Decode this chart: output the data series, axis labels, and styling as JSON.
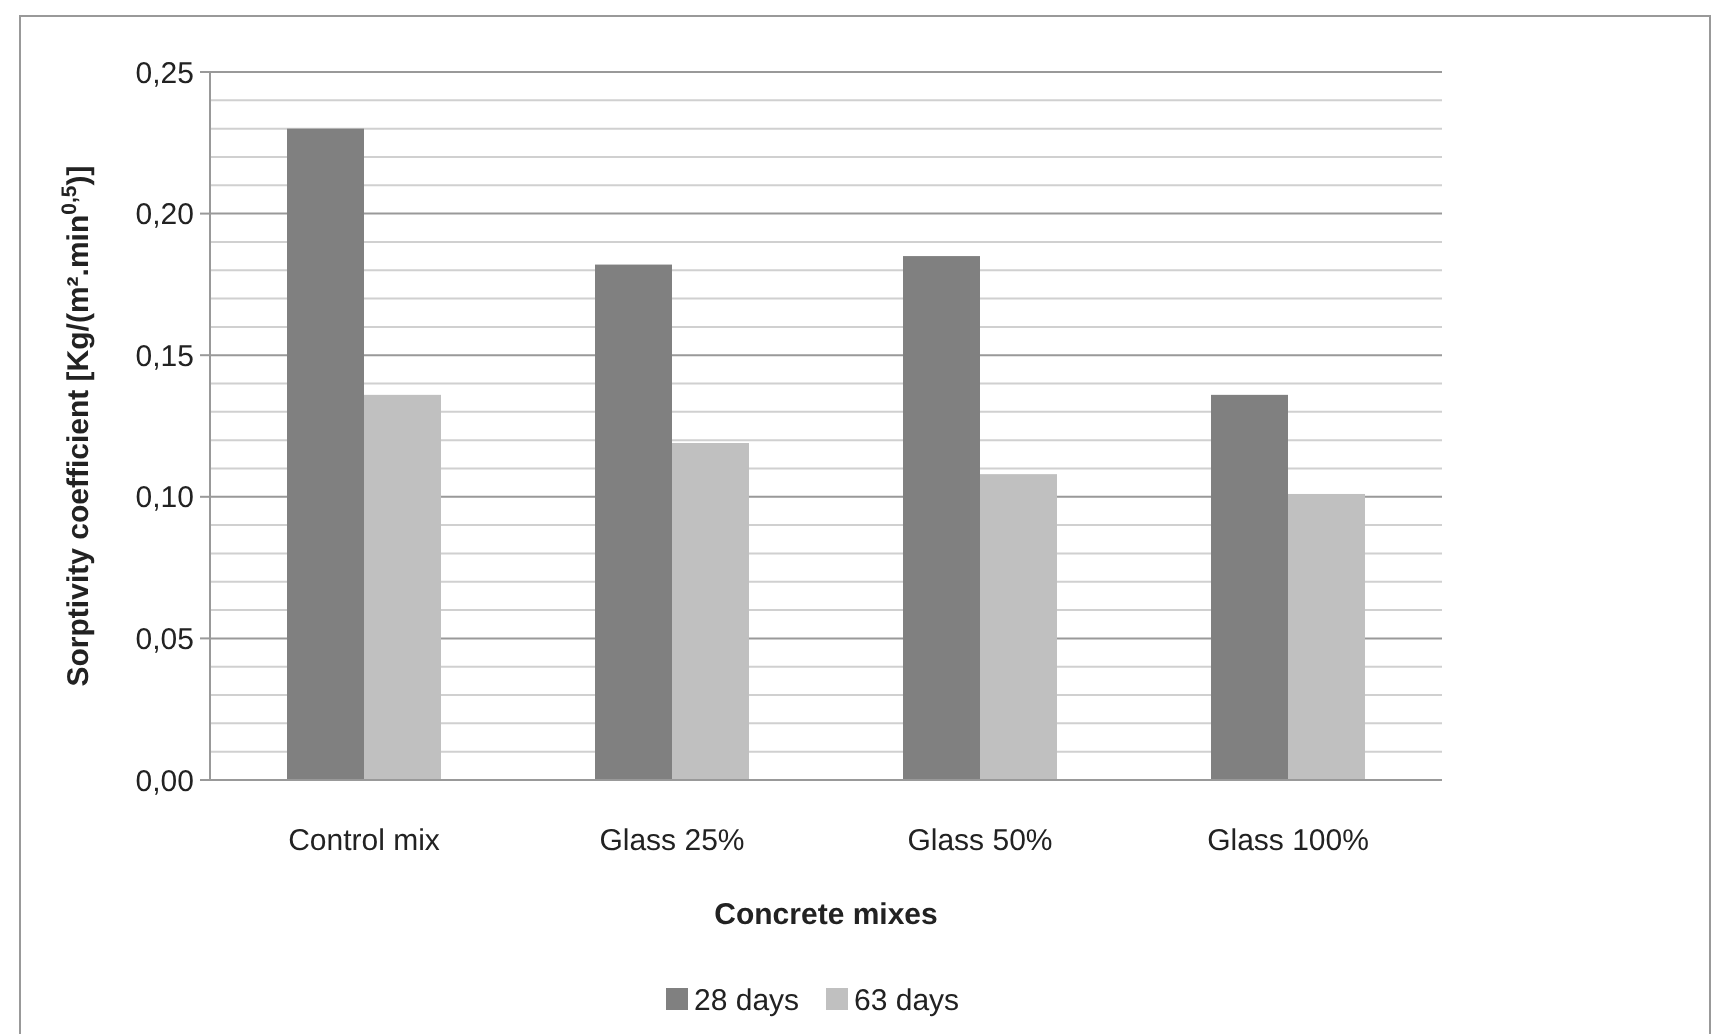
{
  "chart_data": {
    "type": "bar",
    "xlabel": "Concrete mixes",
    "ylabel": "Sorptivity coefficient  [Kg/(m².min$^{0,5}$)]",
    "categories": [
      "Control mix",
      "Glass 25%",
      "Glass 50%",
      "Glass 100%"
    ],
    "series": [
      {
        "name": "28 days",
        "color": "#808080",
        "values": [
          0.23,
          0.182,
          0.185,
          0.136
        ]
      },
      {
        "name": "63 days",
        "color": "#c0c0c0",
        "values": [
          0.136,
          0.119,
          0.108,
          0.101
        ]
      }
    ],
    "ylim": [
      0,
      0.25
    ],
    "yticks": [
      {
        "value": 0,
        "label": "0,00"
      },
      {
        "value": 0.01,
        "label": null
      },
      {
        "value": 0.02,
        "label": null
      },
      {
        "value": 0.03,
        "label": null
      },
      {
        "value": 0.04,
        "label": null
      },
      {
        "value": 0.05,
        "label": "0,05"
      },
      {
        "value": 0.06,
        "label": null
      },
      {
        "value": 0.07,
        "label": null
      },
      {
        "value": 0.08,
        "label": null
      },
      {
        "value": 0.09,
        "label": null
      },
      {
        "value": 0.1,
        "label": "0,10"
      },
      {
        "value": 0.11,
        "label": null
      },
      {
        "value": 0.12,
        "label": null
      },
      {
        "value": 0.13,
        "label": null
      },
      {
        "value": 0.14,
        "label": null
      },
      {
        "value": 0.15,
        "label": "0,15"
      },
      {
        "value": 0.16,
        "label": null
      },
      {
        "value": 0.17,
        "label": null
      },
      {
        "value": 0.18,
        "label": null
      },
      {
        "value": 0.19,
        "label": null
      },
      {
        "value": 0.2,
        "label": "0,20"
      },
      {
        "value": 0.21,
        "label": null
      },
      {
        "value": 0.22,
        "label": null
      },
      {
        "value": 0.23,
        "label": null
      },
      {
        "value": 0.24,
        "label": null
      },
      {
        "value": 0.25,
        "label": "0,25"
      }
    ],
    "grid": "y",
    "legend": "bottom"
  }
}
